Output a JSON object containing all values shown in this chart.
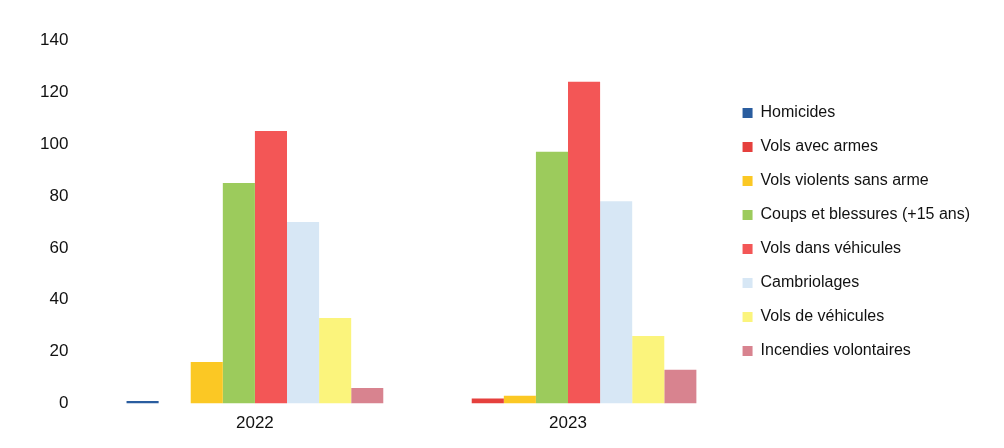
{
  "chart_data": {
    "type": "bar",
    "categories": [
      "2022",
      "2023"
    ],
    "series": [
      {
        "name": "Homicides",
        "color": "#2a5d9f",
        "values": [
          1,
          0
        ]
      },
      {
        "name": "Vols avec armes",
        "color": "#e5403d",
        "values": [
          0,
          2
        ]
      },
      {
        "name": "Vols violents sans arme",
        "color": "#fbc824",
        "values": [
          16,
          3
        ]
      },
      {
        "name": "Coups et blessures (+15 ans)",
        "color": "#9ccb5c",
        "values": [
          85,
          97
        ]
      },
      {
        "name": "Vols dans véhicules",
        "color": "#f35656",
        "values": [
          105,
          124
        ]
      },
      {
        "name": "Cambriolages",
        "color": "#d7e7f5",
        "values": [
          70,
          78
        ]
      },
      {
        "name": "Vols de véhicules",
        "color": "#fbf47c",
        "values": [
          33,
          26
        ]
      },
      {
        "name": "Incendies volontaires",
        "color": "#d8838f",
        "values": [
          6,
          13
        ]
      }
    ],
    "ylim": [
      0,
      140
    ],
    "yticks": [
      0,
      20,
      40,
      60,
      80,
      100,
      120,
      140
    ],
    "grid": false,
    "legend": "right"
  }
}
